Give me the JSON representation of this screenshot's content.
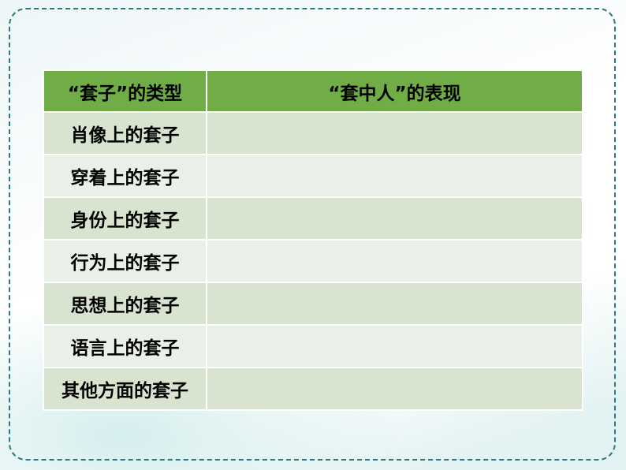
{
  "table": {
    "headers": [
      "“套子”的类型",
      "“套中人”的表现"
    ],
    "rows": [
      {
        "type": "肖像上的套子",
        "performance": ""
      },
      {
        "type": "穿着上的套子",
        "performance": ""
      },
      {
        "type": "身份上的套子",
        "performance": ""
      },
      {
        "type": "行为上的套子",
        "performance": ""
      },
      {
        "type": "思想上的套子",
        "performance": ""
      },
      {
        "type": "语言上的套子",
        "performance": ""
      },
      {
        "type": "其他方面的套子",
        "performance": ""
      }
    ]
  },
  "colors": {
    "header": "#70ad47",
    "row_dark": "#d8e4cf",
    "row_light": "#eaf0e7",
    "frame": "#2a7a80"
  }
}
